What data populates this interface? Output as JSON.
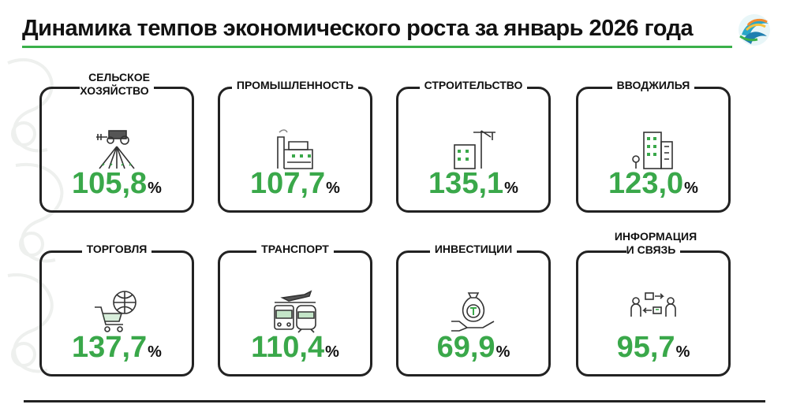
{
  "header": {
    "title": "Динамика темпов экономического роста за январь 2026 года"
  },
  "colors": {
    "accent": "#3aa84a",
    "text": "#111111",
    "frame": "#222222"
  },
  "cards": [
    {
      "title": "СЕЛЬСКОЕ\nХОЗЯЙСТВО",
      "value": "105,8",
      "unit": "%",
      "icon": "tractor-field-icon"
    },
    {
      "title": "ПРОМЫШЛЕННОСТЬ",
      "value": "107,7",
      "unit": "%",
      "icon": "factory-icon"
    },
    {
      "title": "СТРОИТЕЛЬСТВО",
      "value": "135,1",
      "unit": "%",
      "icon": "crane-building-icon"
    },
    {
      "title": "ВВОДЖИЛЬЯ",
      "value": "123,0",
      "unit": "%",
      "icon": "apartment-building-icon"
    },
    {
      "title": "ТОРГОВЛЯ",
      "value": "137,7",
      "unit": "%",
      "icon": "shopping-cart-globe-icon"
    },
    {
      "title": "ТРАНСПОРТ",
      "value": "110,4",
      "unit": "%",
      "icon": "plane-bus-train-icon"
    },
    {
      "title": "ИНВЕСТИЦИИ",
      "value": "69,9",
      "unit": "%",
      "icon": "money-bag-hand-icon"
    },
    {
      "title": "ИНФОРМАЦИЯ\nИ СВЯЗЬ",
      "value": "95,7",
      "unit": "%",
      "icon": "people-exchange-icon"
    }
  ]
}
